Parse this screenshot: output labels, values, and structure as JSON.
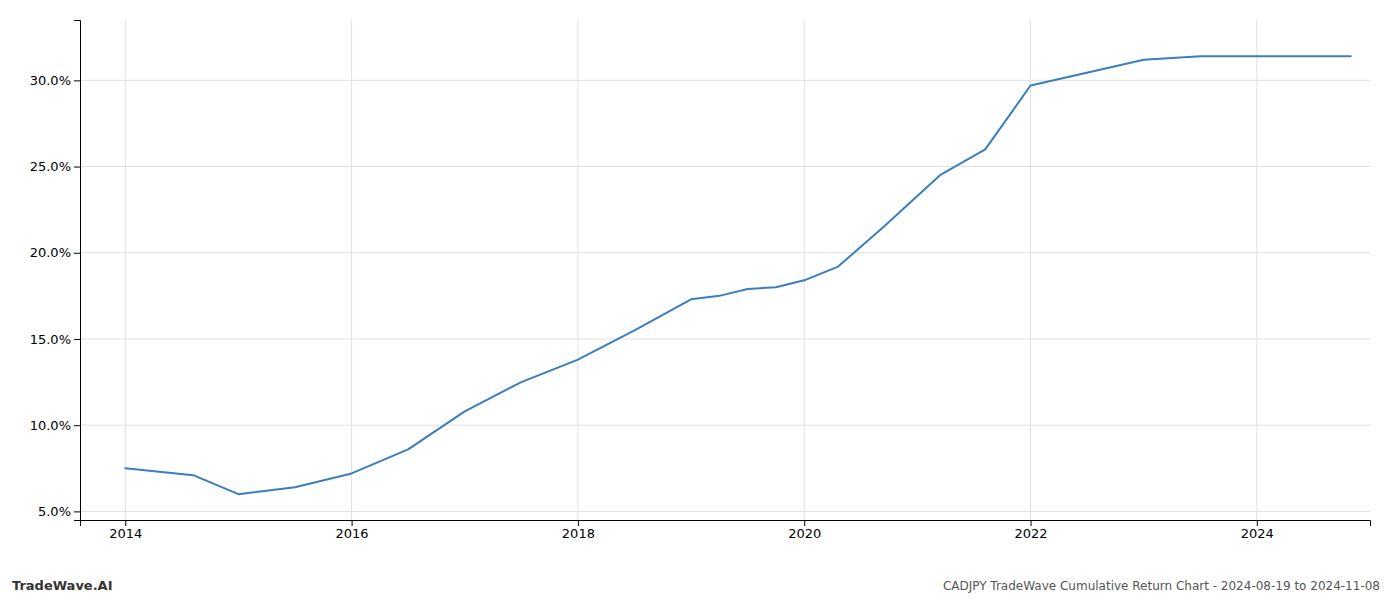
{
  "chart_data": {
    "type": "line",
    "title": "CADJPY TradeWave Cumulative Return Chart - 2024-08-19 to 2024-11-08",
    "annotations": [
      "TradeWave.AI"
    ],
    "x": [
      2014.0,
      2014.6,
      2015.0,
      2015.5,
      2016.0,
      2016.5,
      2017.0,
      2017.5,
      2018.0,
      2018.5,
      2019.0,
      2019.25,
      2019.5,
      2019.75,
      2020.0,
      2020.3,
      2020.7,
      2021.2,
      2021.6,
      2022.0,
      2022.4,
      2023.0,
      2023.5,
      2024.0,
      2024.5,
      2024.83
    ],
    "values": [
      7.5,
      7.1,
      6.0,
      6.4,
      7.2,
      8.6,
      10.8,
      12.5,
      13.8,
      15.5,
      17.3,
      17.5,
      17.9,
      18.0,
      18.4,
      19.2,
      21.5,
      24.5,
      26.0,
      29.7,
      30.3,
      31.2,
      31.4,
      31.4,
      31.4,
      31.4
    ],
    "color": "#3a7ebf",
    "xlim": [
      2013.6,
      2025.0
    ],
    "ylim": [
      4.5,
      33.5
    ],
    "xticks": [
      2014,
      2016,
      2018,
      2020,
      2022,
      2024
    ],
    "yticks": [
      {
        "value": 5.0,
        "label": "5.0%"
      },
      {
        "value": 10.0,
        "label": "10.0%"
      },
      {
        "value": 15.0,
        "label": "15.0%"
      },
      {
        "value": 20.0,
        "label": "20.0%"
      },
      {
        "value": 25.0,
        "label": "25.0%"
      },
      {
        "value": 30.0,
        "label": "30.0%"
      }
    ],
    "grid": true
  }
}
